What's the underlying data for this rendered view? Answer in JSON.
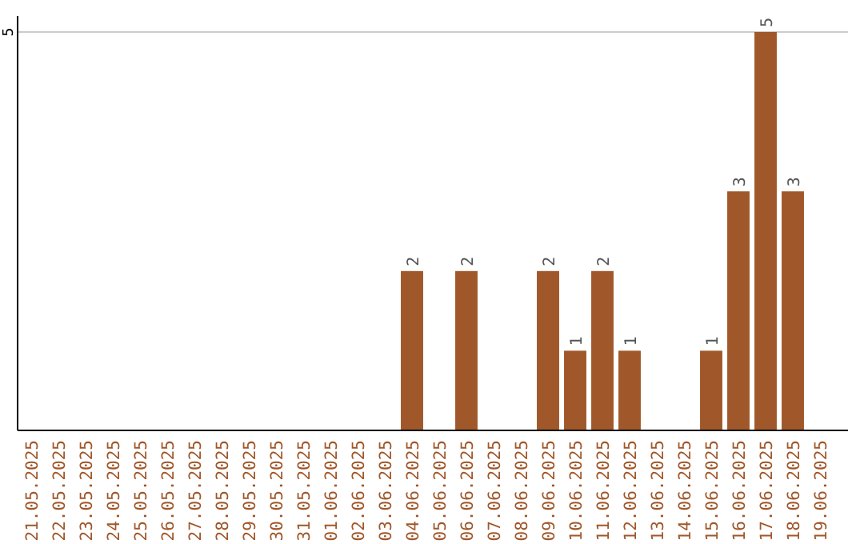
{
  "chart_data": {
    "type": "bar",
    "categories": [
      "21.05.2025",
      "22.05.2025",
      "23.05.2025",
      "24.05.2025",
      "25.05.2025",
      "26.05.2025",
      "27.05.2025",
      "28.05.2025",
      "29.05.2025",
      "30.05.2025",
      "31.05.2025",
      "01.06.2025",
      "02.06.2025",
      "03.06.2025",
      "04.06.2025",
      "05.06.2025",
      "06.06.2025",
      "07.06.2025",
      "08.06.2025",
      "09.06.2025",
      "10.06.2025",
      "11.06.2025",
      "12.06.2025",
      "13.06.2025",
      "14.06.2025",
      "15.06.2025",
      "16.06.2025",
      "17.06.2025",
      "18.06.2025",
      "19.06.2025"
    ],
    "values": [
      null,
      null,
      null,
      null,
      null,
      null,
      null,
      null,
      null,
      null,
      null,
      null,
      null,
      null,
      2,
      null,
      2,
      null,
      null,
      2,
      1,
      2,
      1,
      null,
      null,
      1,
      3,
      5,
      3,
      null
    ],
    "value_labels": [
      null,
      null,
      null,
      null,
      null,
      null,
      null,
      null,
      null,
      null,
      null,
      null,
      null,
      null,
      "2",
      null,
      "2",
      null,
      null,
      "2",
      "1",
      "2",
      "1",
      null,
      null,
      "1",
      "3",
      "5",
      "3",
      null
    ],
    "color": "#a0572a",
    "ylim": [
      0,
      5
    ],
    "ref_lines": [
      {
        "axis": "y",
        "value": 5,
        "label": "5",
        "color": "#cccccc"
      }
    ]
  }
}
